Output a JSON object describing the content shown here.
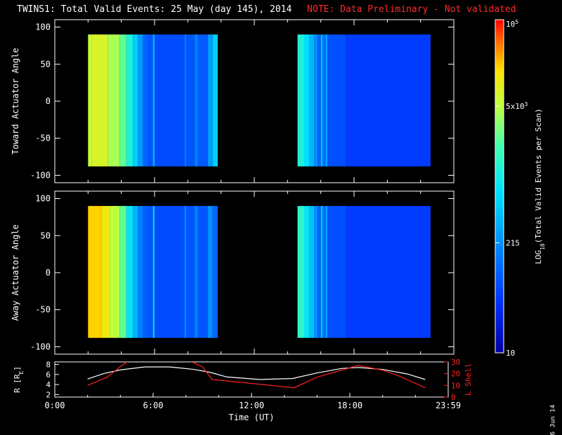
{
  "header": {
    "title": "TWINS1: Total Valid Events: 25 May (day 145), 2014",
    "note": "NOTE: Data Preliminary - Not validated",
    "date_stamp": "6 Jun 14"
  },
  "colors": {
    "panel_bg": "#000000",
    "ring_line": "#ffffff",
    "lshell_line": "#ff2020",
    "note": "#ff2a2a"
  },
  "chart_data": [
    {
      "type": "heatmap",
      "name": "toward",
      "ylabel": "Toward Actuator Angle",
      "ylim": [
        -110,
        110
      ],
      "yticks": [
        100,
        50,
        0,
        -50,
        -100
      ],
      "xlim": [
        0,
        24
      ],
      "data_extent_y": [
        -88,
        90
      ],
      "blocks": [
        {
          "start": 2.0,
          "end": 9.8,
          "stripes": [
            [
              2.0,
              2.2,
              0.75
            ],
            [
              2.2,
              3.2,
              0.78
            ],
            [
              3.2,
              3.9,
              0.72
            ],
            [
              3.9,
              4.3,
              0.65
            ],
            [
              4.3,
              4.7,
              0.55
            ],
            [
              4.7,
              5.0,
              0.45
            ],
            [
              5.0,
              5.3,
              0.35
            ],
            [
              5.3,
              5.6,
              0.25
            ],
            [
              5.6,
              5.9,
              0.22
            ],
            [
              5.9,
              6.0,
              0.4
            ],
            [
              6.0,
              7.8,
              0.2
            ],
            [
              7.8,
              7.9,
              0.3
            ],
            [
              7.9,
              8.4,
              0.22
            ],
            [
              8.4,
              8.6,
              0.3
            ],
            [
              8.6,
              9.2,
              0.23
            ],
            [
              9.2,
              9.5,
              0.35
            ],
            [
              9.5,
              9.8,
              0.45
            ]
          ]
        },
        {
          "start": 14.6,
          "end": 22.6,
          "stripes": [
            [
              14.6,
              15.0,
              0.55
            ],
            [
              15.0,
              15.3,
              0.48
            ],
            [
              15.3,
              15.6,
              0.4
            ],
            [
              15.6,
              15.8,
              0.33
            ],
            [
              15.8,
              16.0,
              0.25
            ],
            [
              16.0,
              16.1,
              0.42
            ],
            [
              16.1,
              16.3,
              0.27
            ],
            [
              16.3,
              16.4,
              0.38
            ],
            [
              16.4,
              17.5,
              0.21
            ],
            [
              17.5,
              22.6,
              0.17
            ]
          ]
        }
      ]
    },
    {
      "type": "heatmap",
      "name": "away",
      "ylabel": "Away Actuator Angle",
      "ylim": [
        -110,
        110
      ],
      "yticks": [
        100,
        50,
        0,
        -50,
        -100
      ],
      "xlim": [
        0,
        24
      ],
      "data_extent_y": [
        -88,
        90
      ],
      "blocks": [
        {
          "start": 2.0,
          "end": 9.8,
          "stripes": [
            [
              2.0,
              2.8,
              0.86
            ],
            [
              2.8,
              3.3,
              0.82
            ],
            [
              3.3,
              3.9,
              0.74
            ],
            [
              3.9,
              4.3,
              0.65
            ],
            [
              4.3,
              4.7,
              0.5
            ],
            [
              4.7,
              5.0,
              0.4
            ],
            [
              5.0,
              5.3,
              0.3
            ],
            [
              5.3,
              5.6,
              0.24
            ],
            [
              5.6,
              5.9,
              0.22
            ],
            [
              5.9,
              6.0,
              0.45
            ],
            [
              6.0,
              7.8,
              0.2
            ],
            [
              7.8,
              7.9,
              0.33
            ],
            [
              7.9,
              8.4,
              0.22
            ],
            [
              8.4,
              8.6,
              0.3
            ],
            [
              8.6,
              9.2,
              0.22
            ],
            [
              9.2,
              9.5,
              0.33
            ],
            [
              9.5,
              9.8,
              0.25
            ]
          ]
        },
        {
          "start": 14.6,
          "end": 22.6,
          "stripes": [
            [
              14.6,
              15.0,
              0.58
            ],
            [
              15.0,
              15.3,
              0.5
            ],
            [
              15.3,
              15.6,
              0.42
            ],
            [
              15.6,
              15.8,
              0.34
            ],
            [
              15.8,
              16.0,
              0.25
            ],
            [
              16.0,
              16.1,
              0.44
            ],
            [
              16.1,
              16.3,
              0.27
            ],
            [
              16.3,
              16.4,
              0.38
            ],
            [
              16.4,
              17.5,
              0.21
            ],
            [
              17.5,
              22.6,
              0.17
            ]
          ]
        }
      ]
    },
    {
      "type": "line",
      "name": "orbit",
      "ylabel": "R [R",
      "ylabel_sub": "E",
      "ylabel_close": "]",
      "ylim": [
        1.5,
        8.5
      ],
      "yticks": [
        8,
        6,
        4,
        2
      ],
      "y2label": "L Shell",
      "y2lim": [
        0,
        30
      ],
      "y2ticks": [
        30,
        20,
        10,
        0
      ],
      "xlabel": "Time (UT)",
      "xticks": [
        "0:00",
        "6:00",
        "12:00",
        "18:00",
        "23:59"
      ],
      "series": [
        {
          "axis": "left",
          "points": [
            [
              2.0,
              5.1
            ],
            [
              3.0,
              6.2
            ],
            [
              4.0,
              6.9
            ],
            [
              5.5,
              7.5
            ],
            [
              7.0,
              7.5
            ],
            [
              8.5,
              7.0
            ],
            [
              9.5,
              6.4
            ],
            [
              10.5,
              5.5
            ],
            [
              12.5,
              5.0
            ],
            [
              14.5,
              5.2
            ],
            [
              16.0,
              6.3
            ],
            [
              17.5,
              7.2
            ],
            [
              18.5,
              7.4
            ],
            [
              20.0,
              7.0
            ],
            [
              21.5,
              6.1
            ],
            [
              22.6,
              5.0
            ]
          ]
        },
        {
          "axis": "right",
          "points": [
            [
              2.0,
              10
            ],
            [
              3.2,
              17
            ],
            [
              4.0,
              26
            ],
            [
              4.5,
              31
            ],
            [
              8.2,
              31
            ],
            [
              9.0,
              26
            ],
            [
              9.6,
              15
            ],
            [
              14.6,
              8
            ],
            [
              16.0,
              17
            ],
            [
              17.5,
              23
            ],
            [
              18.5,
              27
            ],
            [
              20.0,
              23
            ],
            [
              21.0,
              18
            ],
            [
              22.6,
              8
            ]
          ]
        }
      ]
    }
  ],
  "colorbar": {
    "label": "LOG",
    "label_sub": "10",
    "label_rest": "(Total Valid Events per Scan)",
    "ticks": [
      {
        "text": "10",
        "sup": "5",
        "frac": 1.0
      },
      {
        "text": "5x10",
        "sup": "3",
        "frac": 0.74
      },
      {
        "text": "215",
        "sup": "",
        "frac": 0.33
      },
      {
        "text": "10",
        "sup": "",
        "frac": 0.0
      }
    ]
  }
}
